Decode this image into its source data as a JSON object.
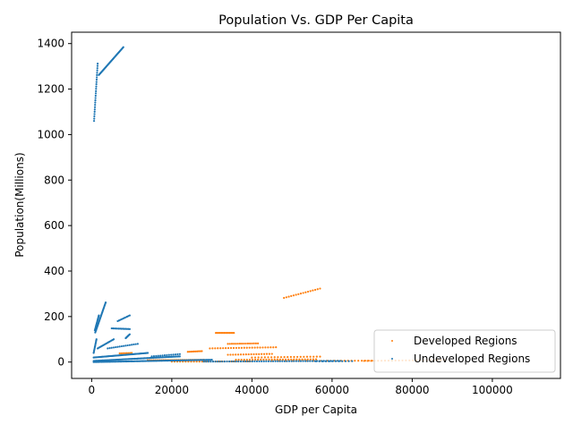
{
  "chart_data": {
    "type": "scatter",
    "title": "Population Vs. GDP Per Capita",
    "xlabel": "GDP per Capita",
    "ylabel": "Population(Millions)",
    "xlim": [
      -5000,
      117000
    ],
    "ylim": [
      -72,
      1450
    ],
    "xticks": [
      0,
      20000,
      40000,
      60000,
      80000,
      100000
    ],
    "xtick_labels": [
      "0",
      "20000",
      "40000",
      "60000",
      "80000",
      "100000"
    ],
    "yticks": [
      0,
      200,
      400,
      600,
      800,
      1000,
      1200,
      1400
    ],
    "ytick_labels": [
      "0",
      "200",
      "400",
      "600",
      "800",
      "1000",
      "1200",
      "1400"
    ],
    "grid": false,
    "legend_position": "lower right",
    "series": [
      {
        "name": "Developed Regions",
        "color": "#ff7f0e",
        "marker": "small dot",
        "trajectories": [
          {
            "x_start": 48000,
            "x_end": 57000,
            "y_start": 282,
            "y_end": 323,
            "n": 16
          },
          {
            "x_start": 31000,
            "x_end": 35500,
            "y_start": 128,
            "y_end": 128,
            "n": 14
          },
          {
            "x_start": 34000,
            "x_end": 41500,
            "y_start": 80,
            "y_end": 82,
            "n": 16
          },
          {
            "x_start": 29500,
            "x_end": 46000,
            "y_start": 60,
            "y_end": 65,
            "n": 26
          },
          {
            "x_start": 24000,
            "x_end": 27500,
            "y_start": 45,
            "y_end": 48,
            "n": 10
          },
          {
            "x_start": 34000,
            "x_end": 45000,
            "y_start": 32,
            "y_end": 36,
            "n": 18
          },
          {
            "x_start": 40000,
            "x_end": 57000,
            "y_start": 20,
            "y_end": 24,
            "n": 22
          },
          {
            "x_start": 7000,
            "x_end": 10000,
            "y_start": 38,
            "y_end": 40,
            "n": 8
          },
          {
            "x_start": 14000,
            "x_end": 28000,
            "y_start": 8,
            "y_end": 10,
            "n": 30
          },
          {
            "x_start": 36000,
            "x_end": 56000,
            "y_start": 10,
            "y_end": 12,
            "n": 30
          },
          {
            "x_start": 45000,
            "x_end": 70000,
            "y_start": 5,
            "y_end": 6,
            "n": 30
          },
          {
            "x_start": 68000,
            "x_end": 88000,
            "y_start": 5,
            "y_end": 9,
            "n": 24
          },
          {
            "x_start": 20000,
            "x_end": 40000,
            "y_start": 2,
            "y_end": 3,
            "n": 30
          }
        ]
      },
      {
        "name": "Undeveloped Regions",
        "color": "#1f77b4",
        "marker": "small dot",
        "trajectories": [
          {
            "x_start": 600,
            "x_end": 1500,
            "y_start": 1060,
            "y_end": 1312,
            "n": 26
          },
          {
            "x_start": 1800,
            "x_end": 7900,
            "y_start": 1262,
            "y_end": 1384,
            "n": 36
          },
          {
            "x_start": 900,
            "x_end": 3500,
            "y_start": 130,
            "y_end": 262,
            "n": 28
          },
          {
            "x_start": 800,
            "x_end": 1800,
            "y_start": 140,
            "y_end": 205,
            "n": 14
          },
          {
            "x_start": 6500,
            "x_end": 9500,
            "y_start": 180,
            "y_end": 205,
            "n": 10
          },
          {
            "x_start": 5000,
            "x_end": 9500,
            "y_start": 148,
            "y_end": 145,
            "n": 14
          },
          {
            "x_start": 8500,
            "x_end": 9500,
            "y_start": 105,
            "y_end": 122,
            "n": 8
          },
          {
            "x_start": 500,
            "x_end": 1200,
            "y_start": 40,
            "y_end": 100,
            "n": 12
          },
          {
            "x_start": 1500,
            "x_end": 5500,
            "y_start": 60,
            "y_end": 100,
            "n": 16
          },
          {
            "x_start": 4000,
            "x_end": 11500,
            "y_start": 60,
            "y_end": 80,
            "n": 16
          },
          {
            "x_start": 500,
            "x_end": 14000,
            "y_start": 20,
            "y_end": 40,
            "n": 50
          },
          {
            "x_start": 500,
            "x_end": 22000,
            "y_start": 5,
            "y_end": 25,
            "n": 70
          },
          {
            "x_start": 500,
            "x_end": 30000,
            "y_start": 0,
            "y_end": 10,
            "n": 90
          },
          {
            "x_start": 15000,
            "x_end": 22000,
            "y_start": 25,
            "y_end": 35,
            "n": 14
          },
          {
            "x_start": 28000,
            "x_end": 62000,
            "y_start": 2,
            "y_end": 5,
            "n": 60
          },
          {
            "x_start": 56000,
            "x_end": 65000,
            "y_start": 3,
            "y_end": 4,
            "n": 12
          }
        ]
      }
    ]
  }
}
